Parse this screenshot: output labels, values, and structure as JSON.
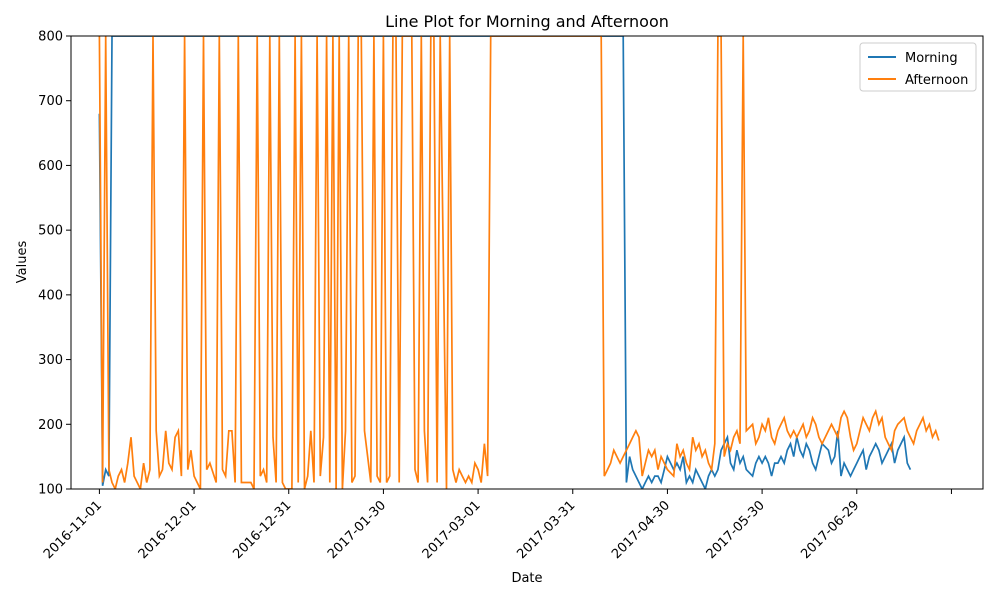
{
  "chart_data": {
    "type": "line",
    "title": "Line Plot for Morning and Afternoon",
    "xlabel": "Date",
    "ylabel": "Values",
    "ylim": [
      100,
      800
    ],
    "xlim": [
      "2016-10-23",
      "2017-08-08"
    ],
    "x_ticks": [
      "2016-11-01",
      "2016-12-01",
      "2016-12-31",
      "2017-01-30",
      "2017-03-01",
      "2017-03-31",
      "2017-04-30",
      "2017-05-30",
      "2017-06-29"
    ],
    "y_ticks": [
      100,
      200,
      300,
      400,
      500,
      600,
      700,
      800
    ],
    "legend": {
      "position": "top-right"
    },
    "start_date": "2016-11-01",
    "series": [
      {
        "name": "Morning",
        "color": "#1f77b4",
        "values": [
          680,
          105,
          130,
          120,
          800,
          800,
          800,
          800,
          800,
          800,
          800,
          800,
          800,
          800,
          800,
          800,
          800,
          800,
          800,
          800,
          800,
          800,
          800,
          800,
          800,
          800,
          800,
          800,
          800,
          800,
          800,
          800,
          800,
          800,
          800,
          800,
          800,
          800,
          800,
          800,
          800,
          800,
          800,
          800,
          800,
          800,
          800,
          800,
          800,
          800,
          800,
          800,
          800,
          800,
          800,
          800,
          800,
          800,
          800,
          800,
          800,
          800,
          800,
          800,
          800,
          800,
          800,
          800,
          800,
          800,
          800,
          800,
          800,
          800,
          800,
          800,
          800,
          800,
          800,
          800,
          800,
          800,
          800,
          800,
          800,
          800,
          800,
          800,
          800,
          800,
          800,
          800,
          800,
          800,
          800,
          800,
          800,
          800,
          800,
          800,
          800,
          800,
          800,
          800,
          800,
          800,
          800,
          800,
          800,
          800,
          800,
          800,
          800,
          800,
          800,
          800,
          800,
          800,
          800,
          800,
          800,
          800,
          800,
          800,
          800,
          800,
          800,
          800,
          800,
          800,
          800,
          800,
          800,
          800,
          800,
          800,
          800,
          800,
          800,
          800,
          800,
          800,
          800,
          800,
          800,
          800,
          800,
          800,
          800,
          800,
          800,
          800,
          800,
          800,
          800,
          800,
          800,
          800,
          800,
          800,
          110,
          150,
          130,
          120,
          110,
          100,
          110,
          120,
          110,
          120,
          120,
          110,
          130,
          150,
          130,
          140,
          130,
          150,
          110,
          120,
          110,
          130,
          120,
          110,
          100,
          120,
          130,
          120,
          130,
          160,
          170,
          180,
          140,
          130,
          160,
          140,
          150,
          130,
          120,
          140,
          150,
          140,
          150,
          140,
          120,
          140,
          140,
          150,
          140,
          160,
          170,
          150,
          180,
          160,
          150,
          170,
          160,
          140,
          130,
          150,
          170,
          160,
          140,
          150,
          190,
          120,
          140,
          130,
          120,
          130,
          140,
          150,
          160,
          130,
          150,
          160,
          170,
          160,
          140,
          150,
          160,
          170,
          140,
          160,
          180,
          140,
          130
        ],
        "note_unused": true
      },
      {
        "name": "Afternoon",
        "color": "#ff7f0e",
        "values": [
          800,
          110,
          800,
          130,
          110,
          100,
          120,
          130,
          110,
          140,
          180,
          120,
          100,
          140,
          110,
          130,
          800,
          190,
          120,
          130,
          190,
          140,
          130,
          180,
          190,
          120,
          800,
          130,
          160,
          120,
          110,
          100,
          800,
          130,
          140,
          110,
          800,
          130,
          120,
          190,
          190,
          110,
          800,
          110,
          110,
          110,
          110,
          100,
          800,
          120,
          130,
          110,
          800,
          180,
          110,
          800,
          110,
          100,
          100,
          800,
          110,
          800,
          100,
          120,
          190,
          110,
          800,
          120,
          180,
          800,
          110,
          800,
          100,
          800,
          100,
          190,
          800,
          110,
          120,
          800,
          800,
          190,
          110,
          800,
          120,
          110,
          800,
          110,
          120,
          800,
          800,
          110,
          800,
          800,
          800,
          800,
          130,
          110,
          800,
          190,
          110,
          800,
          800,
          110,
          800,
          100,
          800,
          130,
          110,
          130,
          120,
          110,
          120,
          110,
          140,
          130,
          110,
          170,
          120,
          800,
          800,
          800,
          800,
          800,
          800,
          800,
          800,
          800,
          800,
          800,
          800,
          800,
          800,
          800,
          800,
          800,
          800,
          800,
          800,
          800,
          800,
          800,
          800,
          800,
          800,
          800,
          800,
          800,
          800,
          800,
          800,
          800,
          800,
          120,
          130,
          140,
          160,
          150,
          140,
          150,
          160,
          170,
          180,
          190,
          180,
          120,
          140,
          160,
          150,
          160,
          130,
          150,
          140,
          130,
          120,
          170,
          150,
          160,
          140,
          130,
          180,
          160,
          170,
          150,
          160,
          140,
          130,
          170,
          800,
          800,
          150,
          170,
          160,
          180,
          190,
          170,
          800,
          190,
          200,
          170,
          180,
          200,
          190,
          210,
          180,
          170,
          190,
          200,
          210,
          190,
          180,
          190,
          180,
          190,
          200,
          180,
          190,
          210,
          200,
          180,
          170,
          190,
          200,
          190,
          180,
          210,
          220,
          210,
          180,
          160,
          170,
          190,
          210,
          200,
          190,
          210,
          220,
          200,
          210,
          180,
          170,
          160,
          190,
          200,
          210,
          190,
          180,
          170,
          190,
          200,
          210,
          190,
          200,
          180,
          190,
          175
        ]
      }
    ]
  }
}
